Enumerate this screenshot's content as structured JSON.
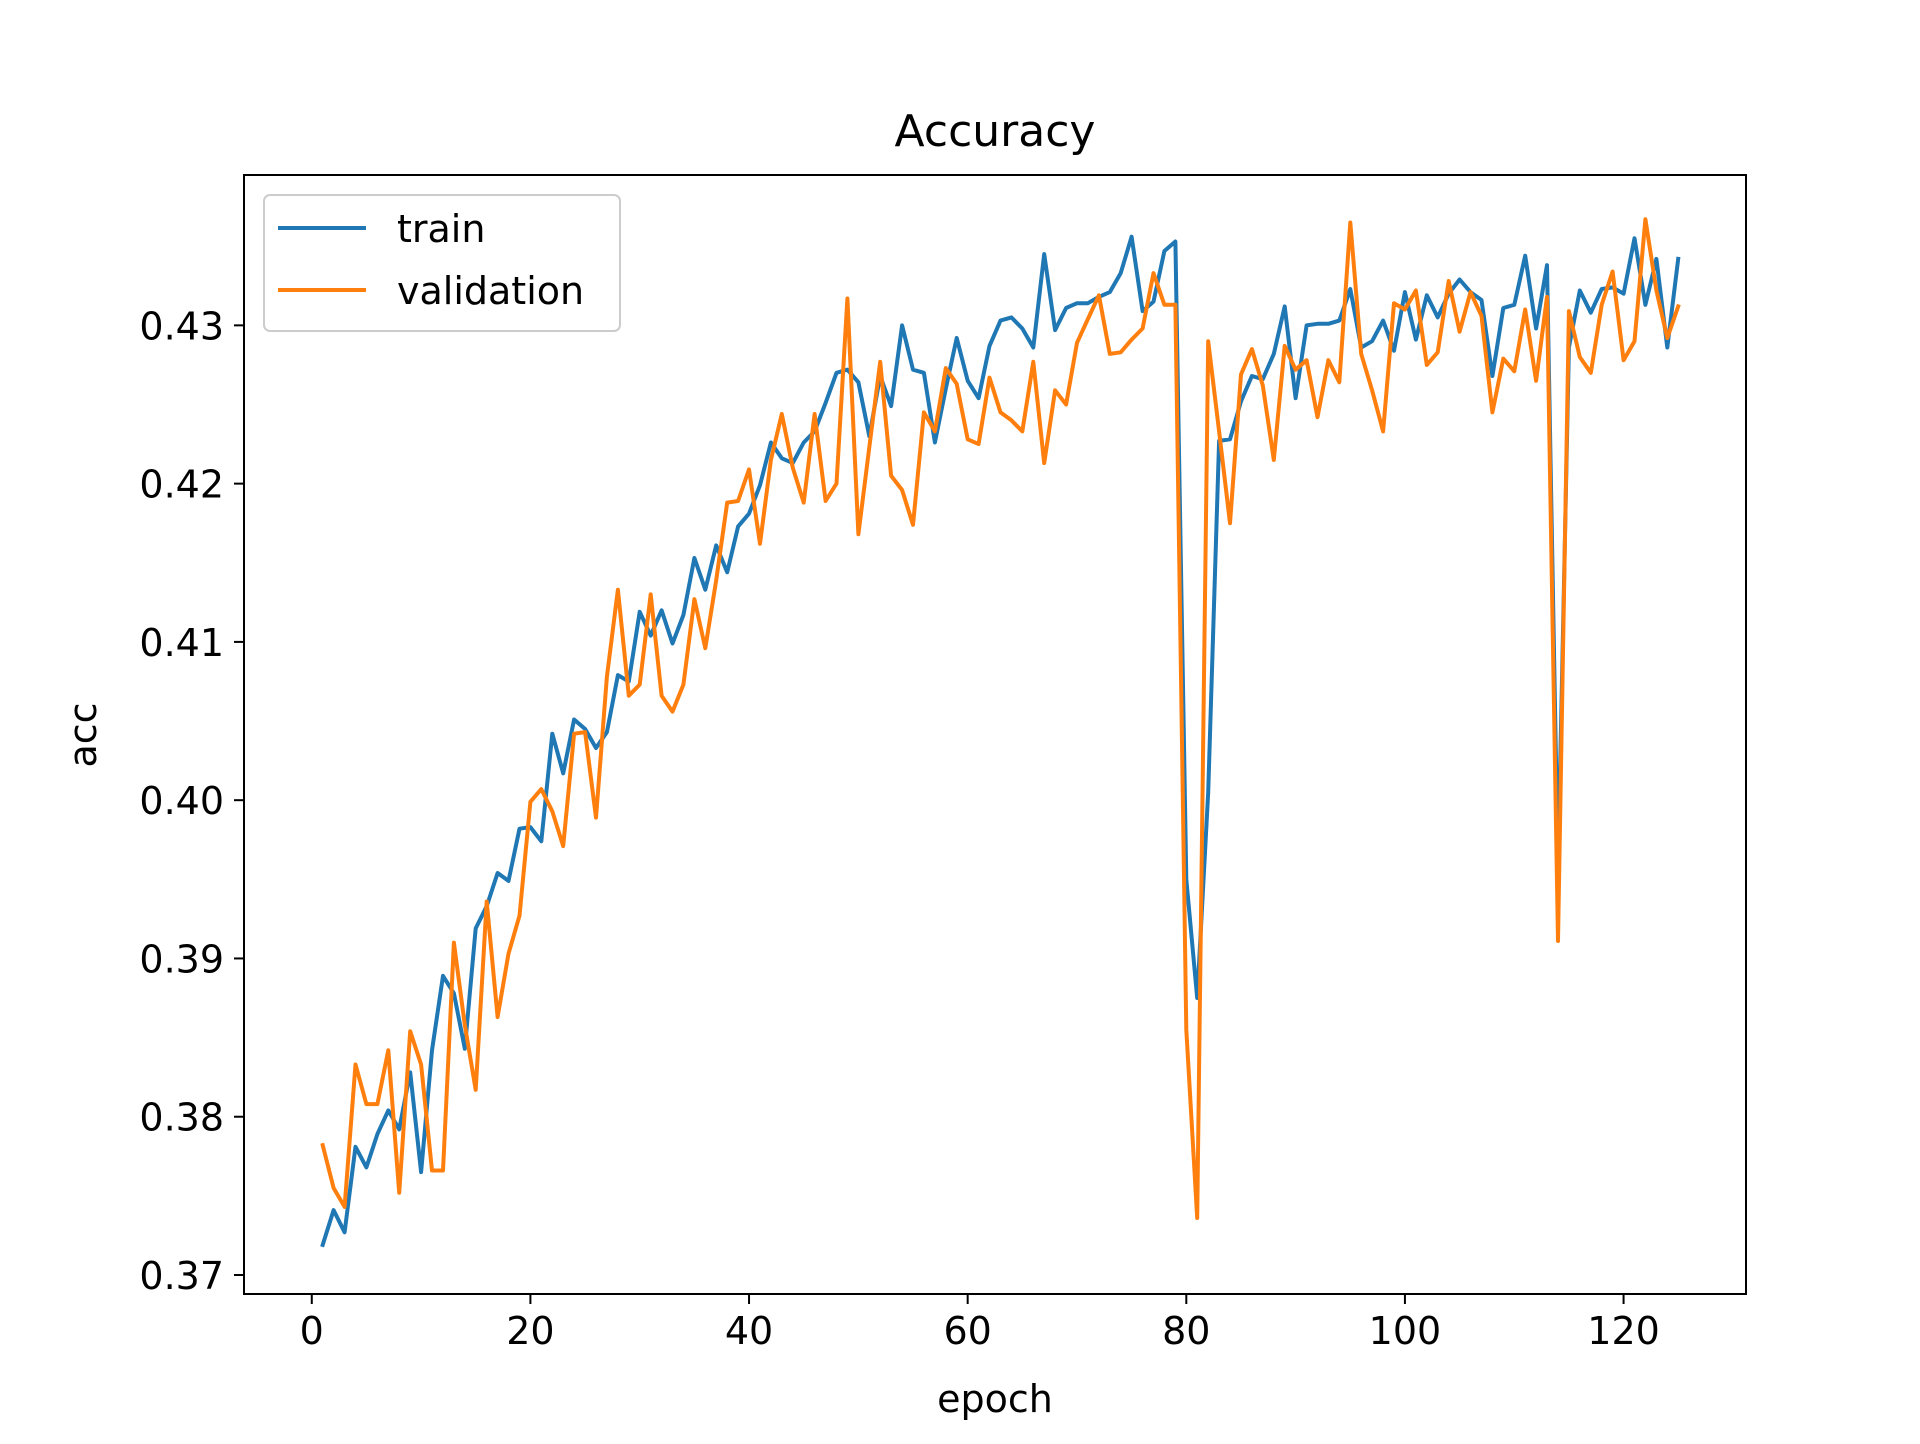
{
  "chart_data": {
    "type": "line",
    "title": "Accuracy",
    "xlabel": "epoch",
    "ylabel": "acc",
    "xlim": [
      -6.2,
      131.2
    ],
    "ylim": [
      0.3688,
      0.4395
    ],
    "xticks": [
      0,
      20,
      40,
      60,
      80,
      100,
      120
    ],
    "yticks": [
      0.37,
      0.38,
      0.39,
      0.4,
      0.41,
      0.42,
      0.43
    ],
    "ytick_labels": [
      "0.37",
      "0.38",
      "0.39",
      "0.40",
      "0.41",
      "0.42",
      "0.43"
    ],
    "grid": false,
    "legend_position": "upper-left",
    "x": [
      1,
      2,
      3,
      4,
      5,
      6,
      7,
      8,
      9,
      10,
      11,
      12,
      13,
      14,
      15,
      16,
      17,
      18,
      19,
      20,
      21,
      22,
      23,
      24,
      25,
      26,
      27,
      28,
      29,
      30,
      31,
      32,
      33,
      34,
      35,
      36,
      37,
      38,
      39,
      40,
      41,
      42,
      43,
      44,
      45,
      46,
      47,
      48,
      49,
      50,
      51,
      52,
      53,
      54,
      55,
      56,
      57,
      58,
      59,
      60,
      61,
      62,
      63,
      64,
      65,
      66,
      67,
      68,
      69,
      70,
      71,
      72,
      73,
      74,
      75,
      76,
      77,
      78,
      79,
      80,
      81,
      82,
      83,
      84,
      85,
      86,
      87,
      88,
      89,
      90,
      91,
      92,
      93,
      94,
      95,
      96,
      97,
      98,
      99,
      100,
      101,
      102,
      103,
      104,
      105,
      106,
      107,
      108,
      109,
      110,
      111,
      112,
      113,
      114,
      115,
      116,
      117,
      118,
      119,
      120,
      121,
      122,
      123,
      124,
      125
    ],
    "series": [
      {
        "name": "train",
        "color": "#1f77b4",
        "values": [
          0.3719,
          0.3741,
          0.3727,
          0.3781,
          0.3768,
          0.3789,
          0.3804,
          0.3792,
          0.3828,
          0.3765,
          0.3842,
          0.3889,
          0.3878,
          0.3843,
          0.3919,
          0.3933,
          0.3954,
          0.3949,
          0.3982,
          0.3983,
          0.3974,
          0.4042,
          0.4017,
          0.4051,
          0.4045,
          0.4033,
          0.4043,
          0.4079,
          0.4075,
          0.4119,
          0.4104,
          0.412,
          0.4099,
          0.4117,
          0.4153,
          0.4133,
          0.4161,
          0.4144,
          0.4173,
          0.4181,
          0.4199,
          0.4226,
          0.4216,
          0.4213,
          0.4226,
          0.4233,
          0.4251,
          0.427,
          0.4272,
          0.4264,
          0.423,
          0.4268,
          0.4249,
          0.43,
          0.4272,
          0.427,
          0.4226,
          0.426,
          0.4292,
          0.4265,
          0.4254,
          0.4287,
          0.4303,
          0.4305,
          0.4298,
          0.4286,
          0.4345,
          0.4297,
          0.4311,
          0.4314,
          0.4314,
          0.4318,
          0.4321,
          0.4333,
          0.4356,
          0.4309,
          0.4315,
          0.4347,
          0.4353,
          0.395,
          0.3875,
          0.4005,
          0.4227,
          0.4228,
          0.4252,
          0.4268,
          0.4266,
          0.4282,
          0.4312,
          0.4254,
          0.43,
          0.4301,
          0.4301,
          0.4303,
          0.4323,
          0.4286,
          0.429,
          0.4303,
          0.4284,
          0.4321,
          0.4291,
          0.4319,
          0.4305,
          0.432,
          0.4329,
          0.4321,
          0.4316,
          0.4268,
          0.4311,
          0.4313,
          0.4344,
          0.4298,
          0.4338,
          0.3955,
          0.4286,
          0.4322,
          0.4308,
          0.4323,
          0.4324,
          0.432,
          0.4355,
          0.4313,
          0.4342,
          0.4286,
          0.4342
        ]
      },
      {
        "name": "validation",
        "color": "#ff7f0e",
        "values": [
          0.3782,
          0.3755,
          0.3743,
          0.3833,
          0.3808,
          0.3808,
          0.3842,
          0.3752,
          0.3854,
          0.3833,
          0.3766,
          0.3766,
          0.391,
          0.3858,
          0.3817,
          0.3936,
          0.3863,
          0.3903,
          0.3927,
          0.3999,
          0.4007,
          0.3993,
          0.3971,
          0.4042,
          0.4043,
          0.3989,
          0.4078,
          0.4133,
          0.4066,
          0.4073,
          0.413,
          0.4066,
          0.4056,
          0.4073,
          0.4127,
          0.4096,
          0.4139,
          0.4188,
          0.4189,
          0.4209,
          0.4162,
          0.4215,
          0.4244,
          0.421,
          0.4188,
          0.4244,
          0.4189,
          0.42,
          0.4317,
          0.4168,
          0.4223,
          0.4277,
          0.4205,
          0.4196,
          0.4174,
          0.4245,
          0.4233,
          0.4273,
          0.4263,
          0.4228,
          0.4225,
          0.4267,
          0.4245,
          0.424,
          0.4233,
          0.4277,
          0.4213,
          0.4259,
          0.425,
          0.4289,
          0.4304,
          0.4319,
          0.4282,
          0.4283,
          0.4291,
          0.4298,
          0.4333,
          0.4313,
          0.4313,
          0.3855,
          0.3736,
          0.429,
          0.4233,
          0.4175,
          0.4269,
          0.4285,
          0.4262,
          0.4215,
          0.4287,
          0.4272,
          0.4278,
          0.4242,
          0.4278,
          0.4264,
          0.4365,
          0.4282,
          0.4259,
          0.4233,
          0.4314,
          0.431,
          0.4322,
          0.4275,
          0.4283,
          0.4328,
          0.4296,
          0.4321,
          0.4306,
          0.4245,
          0.4279,
          0.4271,
          0.431,
          0.4265,
          0.4318,
          0.3911,
          0.4309,
          0.428,
          0.427,
          0.4313,
          0.4334,
          0.4278,
          0.429,
          0.4367,
          0.4322,
          0.4292,
          0.4312
        ]
      }
    ]
  }
}
